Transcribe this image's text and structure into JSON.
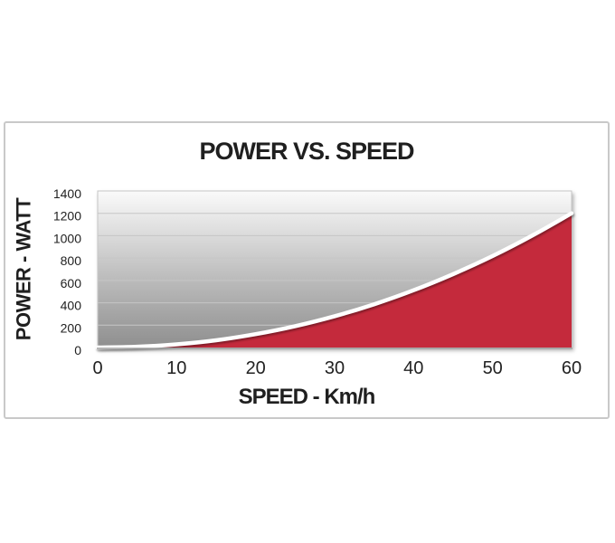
{
  "page": {
    "background": "#FFFFFF"
  },
  "chart_data": {
    "type": "area",
    "title": "POWER VS. SPEED",
    "xlabel": "SPEED - Km/h",
    "ylabel": "POWER - WATT",
    "xlim": [
      0,
      60
    ],
    "ylim": [
      0,
      1400
    ],
    "xticks": [
      0,
      10,
      20,
      30,
      40,
      50,
      60
    ],
    "yticks": [
      0,
      200,
      400,
      600,
      800,
      1000,
      1200,
      1400
    ],
    "grid": "horizontal-only",
    "legend": "none",
    "series": [
      {
        "name": "power-vs-speed",
        "x": [
          0,
          5,
          10,
          15,
          20,
          25,
          30,
          35,
          40,
          45,
          50,
          55,
          60
        ],
        "y": [
          0,
          7,
          28,
          65,
          120,
          191,
          280,
          387,
          512,
          656,
          818,
          1000,
          1200
        ]
      }
    ],
    "colors": {
      "area_fill": "#C42A3C",
      "curve_line": "#FFFFFF",
      "plot_gradient_top": "#FAFAFA",
      "plot_gradient_mid": "#BDBDBD",
      "plot_gradient_bottom": "#8F8F8F",
      "gridline": "#C6C6C6",
      "axis_line": "#9E9E9E",
      "frame_border": "#C9C9C9",
      "text": "#1F1F1F"
    }
  }
}
